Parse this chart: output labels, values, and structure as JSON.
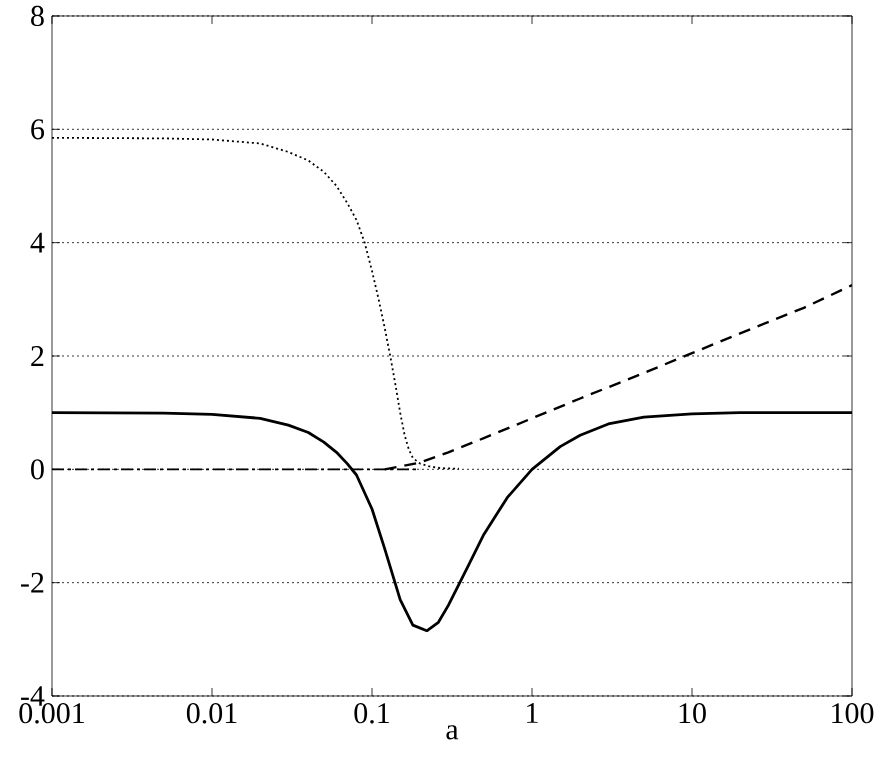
{
  "chart_data": {
    "type": "line",
    "xlabel": "a",
    "log": "x",
    "grid": "y",
    "xlim": [
      0.001,
      100
    ],
    "ylim": [
      -4,
      8
    ],
    "xticks": [
      0.001,
      0.01,
      0.1,
      1,
      10,
      100
    ],
    "yticks": [
      -4,
      -2,
      0,
      2,
      4,
      6,
      8
    ],
    "series": [
      {
        "color": "#000000",
        "line_style": "dotted",
        "x": [
          0.001,
          0.005,
          0.01,
          0.02,
          0.03,
          0.04,
          0.05,
          0.06,
          0.07,
          0.08,
          0.09,
          0.1,
          0.11,
          0.12,
          0.13,
          0.14,
          0.15,
          0.16,
          0.17,
          0.18,
          0.2,
          0.23,
          0.27,
          0.35
        ],
        "values": [
          5.85,
          5.84,
          5.82,
          5.75,
          5.6,
          5.45,
          5.25,
          5.0,
          4.7,
          4.4,
          4.0,
          3.5,
          3.0,
          2.5,
          2.0,
          1.5,
          1.0,
          0.6,
          0.35,
          0.2,
          0.1,
          0.05,
          0.02,
          0.01
        ]
      },
      {
        "color": "#000000",
        "line_style": "solid",
        "x": [
          0.001,
          0.005,
          0.01,
          0.02,
          0.03,
          0.04,
          0.05,
          0.06,
          0.07,
          0.08,
          0.1,
          0.12,
          0.15,
          0.18,
          0.22,
          0.26,
          0.3,
          0.4,
          0.5,
          0.7,
          1,
          1.5,
          2,
          3,
          5,
          10,
          20,
          100
        ],
        "values": [
          1.0,
          0.99,
          0.97,
          0.9,
          0.78,
          0.65,
          0.48,
          0.3,
          0.1,
          -0.1,
          -0.7,
          -1.4,
          -2.3,
          -2.75,
          -2.85,
          -2.7,
          -2.4,
          -1.7,
          -1.15,
          -0.5,
          0.0,
          0.4,
          0.6,
          0.8,
          0.92,
          0.98,
          1.0,
          1.0
        ]
      },
      {
        "color": "#000000",
        "line_style": "dashed",
        "x": [
          0.12,
          0.15,
          0.2,
          0.3,
          0.5,
          1,
          2,
          5,
          10,
          20,
          50,
          100
        ],
        "values": [
          0.0,
          0.05,
          0.12,
          0.3,
          0.55,
          0.9,
          1.25,
          1.7,
          2.05,
          2.4,
          2.85,
          3.25
        ]
      },
      {
        "color": "#000000",
        "line_style": "dashdot",
        "x": [
          0.001,
          0.2
        ],
        "values": [
          0.0,
          0.0
        ]
      }
    ]
  }
}
